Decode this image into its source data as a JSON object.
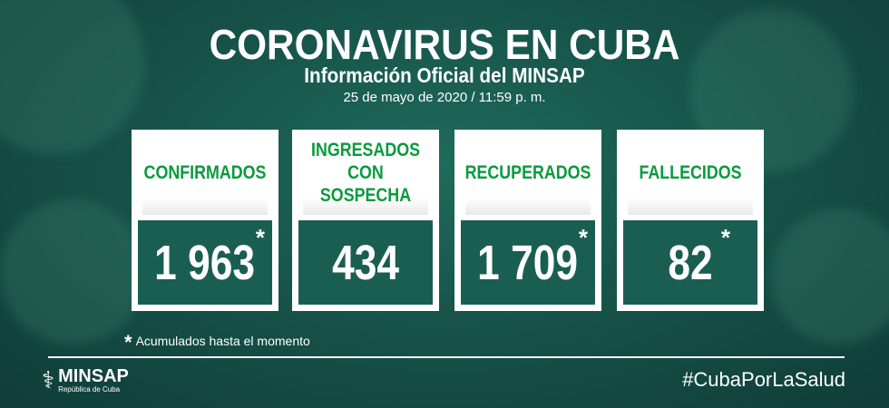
{
  "header": {
    "title": "CORONAVIRUS EN CUBA",
    "subtitle": "Información Oficial del MINSAP",
    "date": "25 de mayo de 2020 / 11:59 p. m."
  },
  "cards": [
    {
      "label": "CONFIRMADOS",
      "value": "1 963",
      "asterisk": "*"
    },
    {
      "label": "INGRESADOS CON SOSPECHA",
      "value": "434",
      "asterisk": ""
    },
    {
      "label": "RECUPERADOS",
      "value": "1 709",
      "asterisk": "*"
    },
    {
      "label": "FALLECIDOS",
      "value": "82",
      "asterisk": "*"
    }
  ],
  "footnote": {
    "symbol": "*",
    "text": "Acumulados hasta el momento"
  },
  "footer": {
    "logo_name": "MINSAP",
    "logo_sub": "República de Cuba",
    "hashtag": "#CubaPorLaSalud"
  },
  "colors": {
    "label_green": "#0a9a3e",
    "background": "#154f46"
  }
}
